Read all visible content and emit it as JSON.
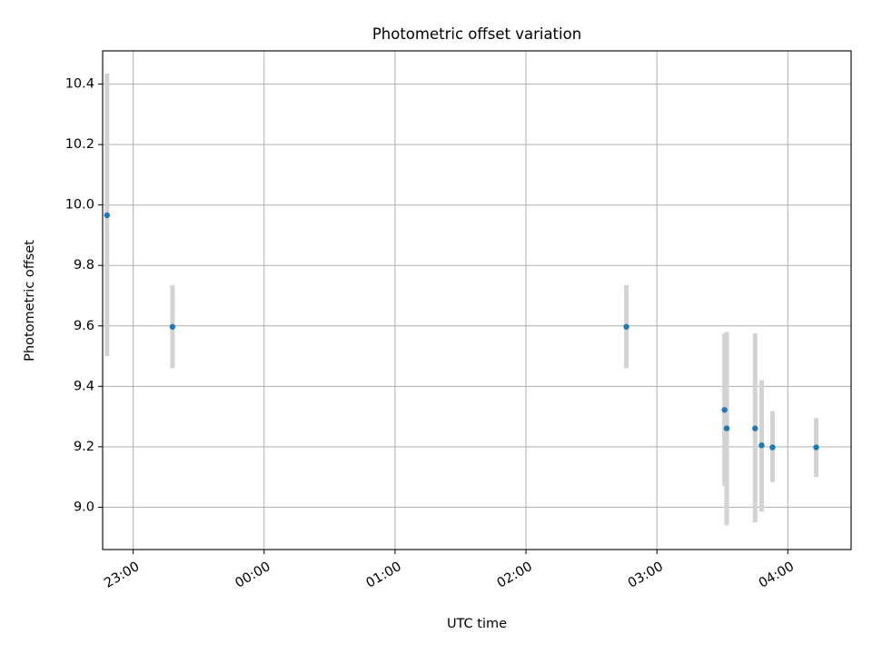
{
  "chart_data": {
    "type": "scatter",
    "title": "Photometric offset variation",
    "xlabel": "UTC time",
    "ylabel": "Photometric offset",
    "x_is_time": true,
    "xlim": [
      "22:46",
      "04:29"
    ],
    "ylim": [
      8.86,
      10.51
    ],
    "xticks": [
      "23:00",
      "00:00",
      "01:00",
      "02:00",
      "03:00",
      "04:00"
    ],
    "yticks": [
      9.0,
      9.2,
      9.4,
      9.6,
      9.8,
      10.0,
      10.2,
      10.4
    ],
    "grid": true,
    "point_color": "#1f77b4",
    "errorbar_color": "#d3d3d3",
    "points": [
      {
        "x": "22:48",
        "y": 9.966,
        "yerr_low": 9.5,
        "yerr_high": 10.435
      },
      {
        "x": "23:18",
        "y": 9.597,
        "yerr_low": 9.46,
        "yerr_high": 9.735
      },
      {
        "x": "02:46",
        "y": 9.597,
        "yerr_low": 9.46,
        "yerr_high": 9.735
      },
      {
        "x": "03:31",
        "y": 9.322,
        "yerr_low": 9.07,
        "yerr_high": 9.575
      },
      {
        "x": "03:32",
        "y": 9.261,
        "yerr_low": 8.94,
        "yerr_high": 9.58
      },
      {
        "x": "03:45",
        "y": 9.261,
        "yerr_low": 8.95,
        "yerr_high": 9.575
      },
      {
        "x": "03:48",
        "y": 9.205,
        "yerr_low": 8.985,
        "yerr_high": 9.42
      },
      {
        "x": "03:53",
        "y": 9.198,
        "yerr_low": 9.083,
        "yerr_high": 9.318
      },
      {
        "x": "04:13",
        "y": 9.198,
        "yerr_low": 9.1,
        "yerr_high": 9.295
      }
    ]
  }
}
